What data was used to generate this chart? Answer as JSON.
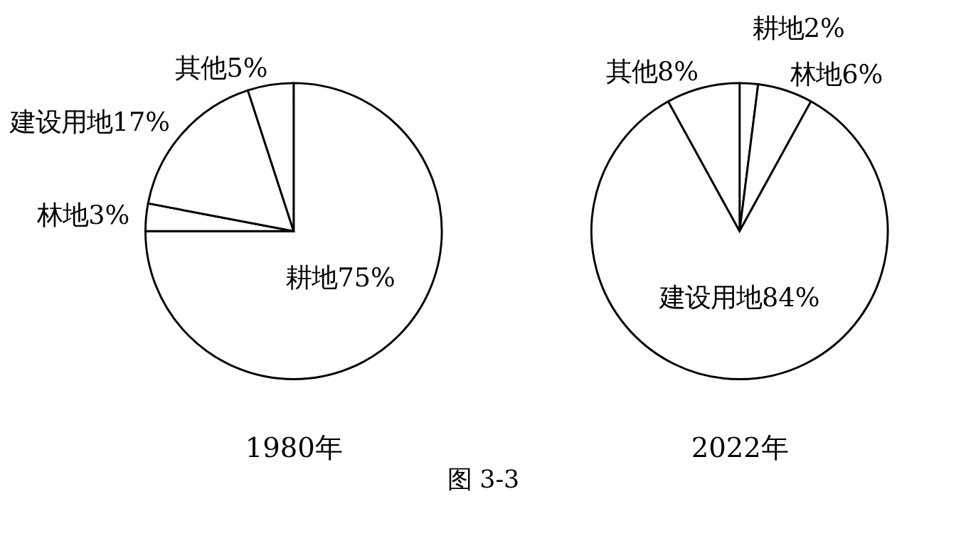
{
  "chart_data": [
    {
      "type": "pie",
      "title": "1980年",
      "categories": [
        "耕地",
        "林地",
        "建设用地",
        "其他"
      ],
      "values": [
        75,
        3,
        17,
        5
      ],
      "value_labels": [
        "75%",
        "3%",
        "17%",
        "5%"
      ],
      "colors": [
        "#ffffff",
        "#ffffff",
        "#ffffff",
        "#ffffff"
      ],
      "annotations": [
        "图 3-3"
      ]
    },
    {
      "type": "pie",
      "title": "2022年",
      "categories": [
        "耕地",
        "林地",
        "建设用地",
        "其他"
      ],
      "values": [
        2,
        6,
        84,
        8
      ],
      "value_labels": [
        "2%",
        "6%",
        "84%",
        "8%"
      ],
      "colors": [
        "#ffffff",
        "#ffffff",
        "#ffffff",
        "#ffffff"
      ]
    }
  ]
}
